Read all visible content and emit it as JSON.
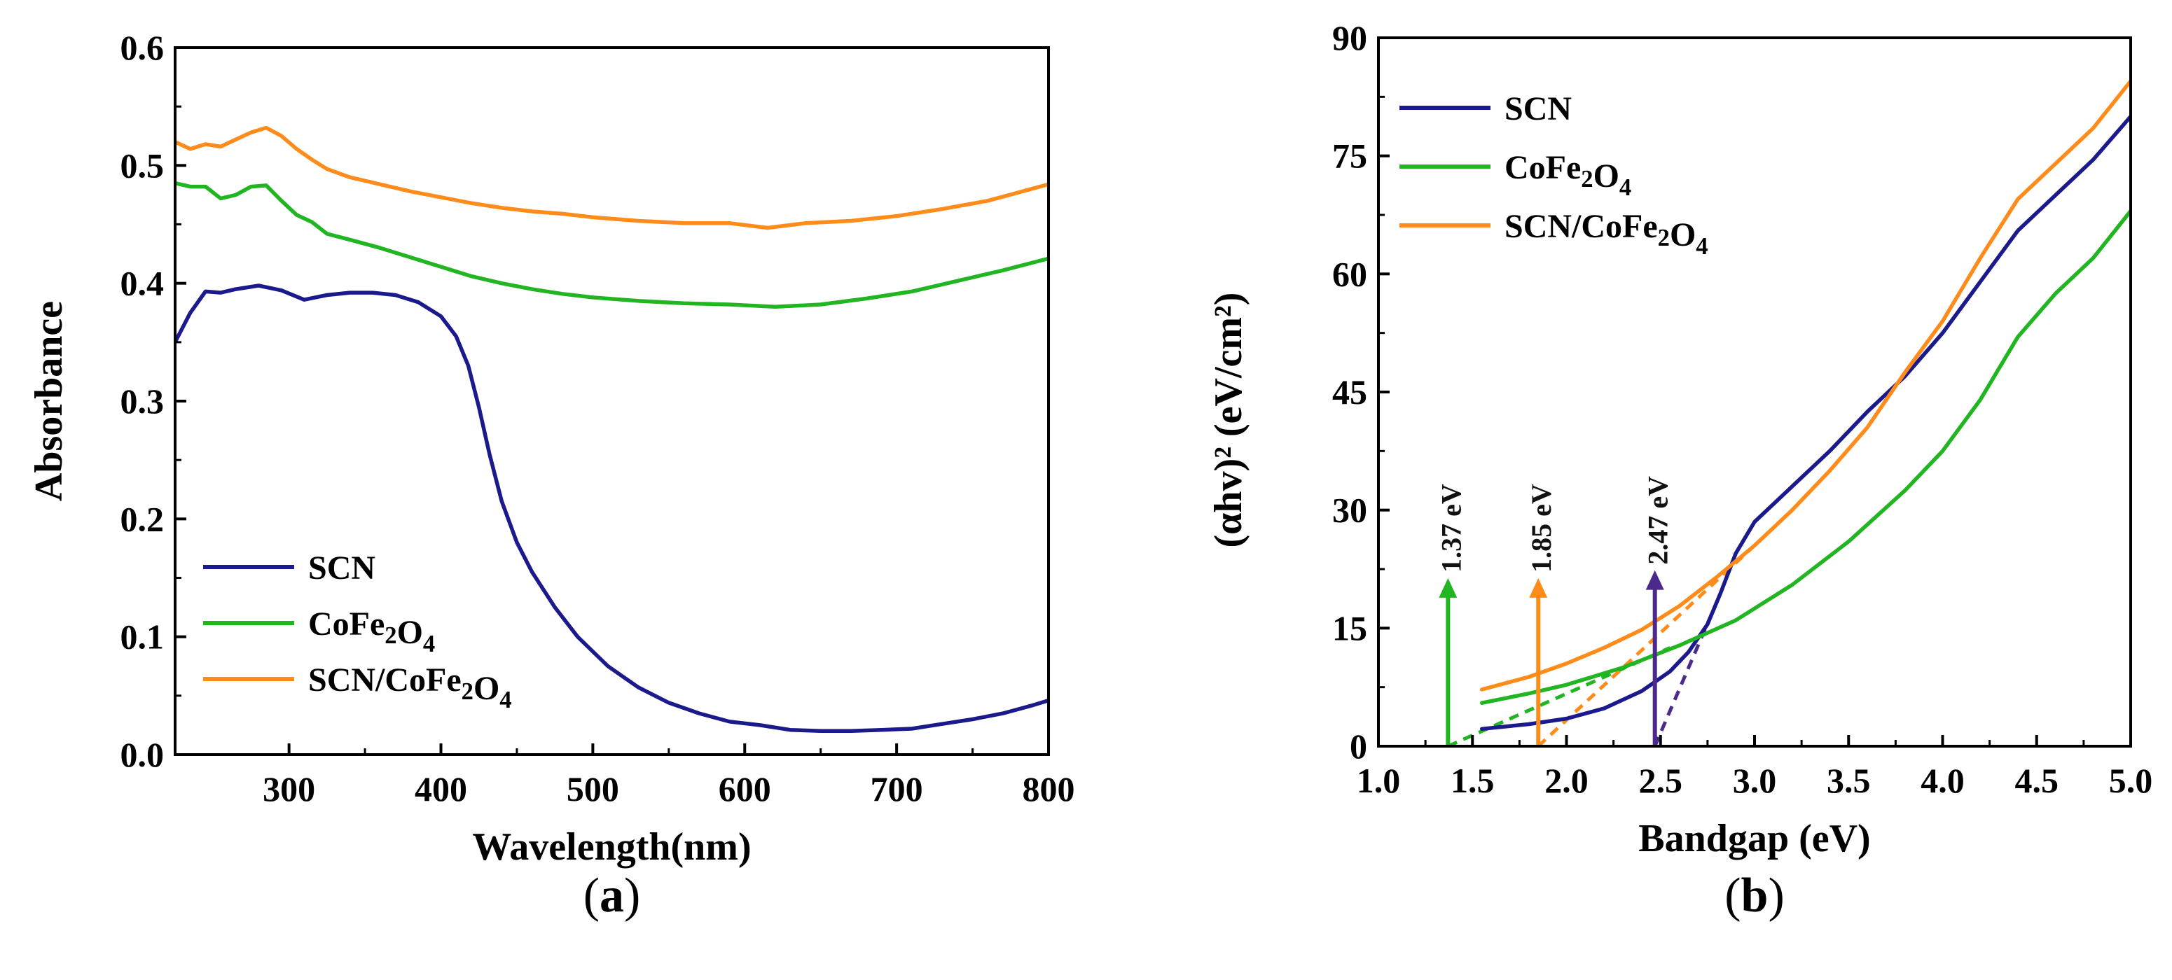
{
  "chart_data": [
    {
      "id": "a",
      "type": "line",
      "panel_label": "(a)",
      "title": "",
      "xlabel": "Wavelength(nm)",
      "ylabel": "Absorbance",
      "xlim": [
        225,
        800
      ],
      "ylim": [
        0,
        0.6
      ],
      "xticks": [
        300,
        400,
        500,
        600,
        700,
        800
      ],
      "yticks": [
        0.0,
        0.1,
        0.2,
        0.3,
        0.4,
        0.5,
        0.6
      ],
      "ytick_labels": [
        "0.0",
        "0.1",
        "0.2",
        "0.3",
        "0.4",
        "0.5",
        "0.6"
      ],
      "grid": false,
      "legend_position": "bottom-left",
      "series": [
        {
          "name": "SCN",
          "color": "#1a1a8c",
          "x": [
            225,
            235,
            245,
            255,
            265,
            280,
            295,
            310,
            325,
            340,
            355,
            370,
            385,
            400,
            410,
            418,
            425,
            432,
            440,
            450,
            460,
            475,
            490,
            510,
            530,
            550,
            570,
            590,
            610,
            630,
            650,
            670,
            690,
            710,
            730,
            750,
            770,
            790,
            800
          ],
          "y": [
            0.35,
            0.375,
            0.393,
            0.392,
            0.395,
            0.398,
            0.394,
            0.386,
            0.39,
            0.392,
            0.392,
            0.39,
            0.384,
            0.372,
            0.355,
            0.33,
            0.295,
            0.255,
            0.215,
            0.18,
            0.155,
            0.125,
            0.1,
            0.075,
            0.057,
            0.044,
            0.035,
            0.028,
            0.025,
            0.021,
            0.02,
            0.02,
            0.021,
            0.022,
            0.026,
            0.03,
            0.035,
            0.042,
            0.046
          ]
        },
        {
          "name": "CoFe₂O₄",
          "color": "#22b522",
          "x": [
            225,
            235,
            245,
            255,
            265,
            275,
            285,
            295,
            305,
            315,
            325,
            340,
            360,
            380,
            400,
            420,
            440,
            460,
            480,
            500,
            530,
            560,
            590,
            620,
            650,
            680,
            710,
            740,
            770,
            800
          ],
          "y": [
            0.485,
            0.482,
            0.482,
            0.472,
            0.475,
            0.482,
            0.483,
            0.47,
            0.458,
            0.452,
            0.442,
            0.437,
            0.43,
            0.422,
            0.414,
            0.406,
            0.4,
            0.395,
            0.391,
            0.388,
            0.385,
            0.383,
            0.382,
            0.38,
            0.382,
            0.387,
            0.393,
            0.402,
            0.411,
            0.421
          ]
        },
        {
          "name": "SCN/CoFe₂O₄",
          "color": "#ff8c1a",
          "x": [
            225,
            235,
            245,
            255,
            265,
            275,
            285,
            295,
            305,
            315,
            325,
            340,
            360,
            380,
            400,
            420,
            440,
            460,
            480,
            500,
            530,
            560,
            590,
            615,
            640,
            670,
            700,
            730,
            760,
            800
          ],
          "y": [
            0.52,
            0.514,
            0.518,
            0.516,
            0.522,
            0.528,
            0.532,
            0.525,
            0.514,
            0.505,
            0.497,
            0.49,
            0.484,
            0.478,
            0.473,
            0.468,
            0.464,
            0.461,
            0.459,
            0.456,
            0.453,
            0.451,
            0.451,
            0.447,
            0.451,
            0.453,
            0.457,
            0.463,
            0.47,
            0.484
          ]
        }
      ],
      "legend": [
        {
          "label": "SCN",
          "color": "#1a1a8c"
        },
        {
          "label": "CoFe₂O₄",
          "color": "#22b522"
        },
        {
          "label": "SCN/CoFe₂O₄",
          "color": "#ff8c1a"
        }
      ]
    },
    {
      "id": "b",
      "type": "line",
      "panel_label": "(b)",
      "title": "",
      "xlabel": "Bandgap (eV)",
      "ylabel": "(αhv)² (eV/cm²)",
      "xlim": [
        1.0,
        5.0
      ],
      "ylim": [
        0,
        90
      ],
      "xticks": [
        1.0,
        1.5,
        2.0,
        2.5,
        3.0,
        3.5,
        4.0,
        4.5,
        5.0
      ],
      "xtick_labels": [
        "1.0",
        "1.5",
        "2.0",
        "2.5",
        "3.0",
        "3.5",
        "4.0",
        "4.5",
        "5.0"
      ],
      "yticks": [
        0,
        15,
        30,
        45,
        60,
        75,
        90
      ],
      "ytick_labels": [
        "0",
        "15",
        "30",
        "45",
        "60",
        "75",
        "90"
      ],
      "grid": false,
      "legend_position": "top-left",
      "series": [
        {
          "name": "SCN",
          "color": "#1a1a8c",
          "x": [
            1.55,
            1.8,
            2.0,
            2.2,
            2.4,
            2.55,
            2.65,
            2.75,
            2.82,
            2.9,
            3.0,
            3.2,
            3.4,
            3.6,
            3.8,
            4.0,
            4.2,
            4.4,
            4.6,
            4.8,
            5.0
          ],
          "y": [
            2.2,
            2.8,
            3.5,
            4.8,
            7.0,
            9.5,
            12.0,
            15.5,
            19.5,
            24.5,
            28.5,
            33.0,
            37.5,
            42.5,
            47.0,
            52.5,
            59.0,
            65.5,
            70.0,
            74.5,
            80.0
          ]
        },
        {
          "name": "CoFe₂O₄",
          "color": "#22b522",
          "x": [
            1.55,
            1.8,
            2.0,
            2.3,
            2.6,
            2.9,
            3.2,
            3.5,
            3.8,
            4.0,
            4.2,
            4.4,
            4.6,
            4.8,
            5.0
          ],
          "y": [
            5.5,
            6.7,
            7.8,
            10.0,
            12.8,
            16.0,
            20.5,
            26.0,
            32.5,
            37.5,
            44.0,
            52.0,
            57.5,
            62.0,
            68.0
          ]
        },
        {
          "name": "SCN/CoFe₂O₄",
          "color": "#ff8c1a",
          "x": [
            1.55,
            1.8,
            2.0,
            2.2,
            2.4,
            2.6,
            2.8,
            3.0,
            3.2,
            3.4,
            3.6,
            3.8,
            4.0,
            4.2,
            4.4,
            4.6,
            4.8,
            5.0
          ],
          "y": [
            7.2,
            8.8,
            10.5,
            12.5,
            14.8,
            17.8,
            21.5,
            25.5,
            30.0,
            35.0,
            40.5,
            47.5,
            54.0,
            62.0,
            69.5,
            74.0,
            78.5,
            84.5
          ]
        }
      ],
      "tangent_lines": [
        {
          "series": "SCN",
          "color": "#4b2a8c",
          "x": [
            2.47,
            2.82
          ],
          "y": [
            0,
            19.5
          ]
        },
        {
          "series": "CoFe₂O₄",
          "color": "#22b522",
          "x": [
            1.37,
            2.55
          ],
          "y": [
            0,
            12.5
          ]
        },
        {
          "series": "SCN/CoFe₂O₄",
          "color": "#ff8c1a",
          "x": [
            1.85,
            3.0
          ],
          "y": [
            0,
            25.5
          ]
        }
      ],
      "annotations": [
        {
          "text": "1.37 eV",
          "x": 1.37,
          "arrow_to_y": 21,
          "color": "#22b522"
        },
        {
          "text": "1.85 eV",
          "x": 1.85,
          "arrow_to_y": 21,
          "color": "#ff8c1a"
        },
        {
          "text": "2.47 eV",
          "x": 2.47,
          "arrow_to_y": 22,
          "color": "#4b2a8c"
        }
      ],
      "legend": [
        {
          "label": "SCN",
          "color": "#1a1a8c"
        },
        {
          "label": "CoFe₂O₄",
          "color": "#22b522"
        },
        {
          "label": "SCN/CoFe₂O₄",
          "color": "#ff8c1a"
        }
      ]
    }
  ]
}
